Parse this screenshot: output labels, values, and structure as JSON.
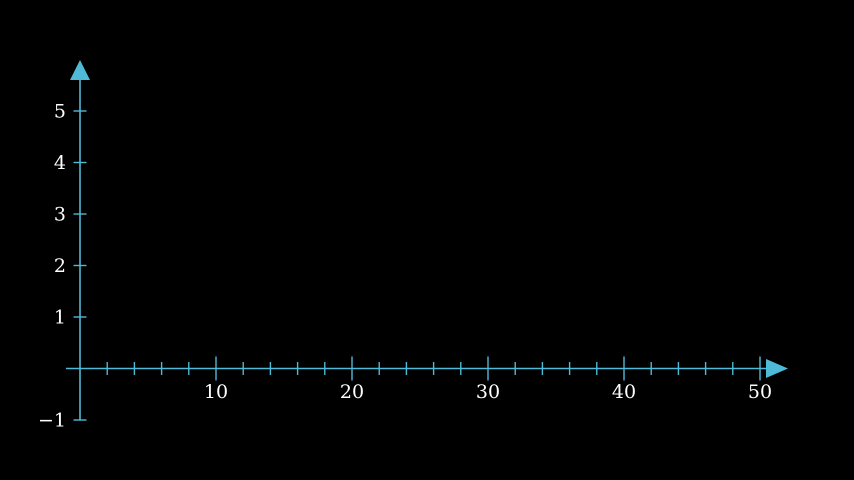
{
  "chart_data": {
    "type": "line",
    "title": "",
    "xlabel": "",
    "ylabel": "",
    "xlim": [
      0,
      50
    ],
    "ylim": [
      -1,
      5
    ],
    "x_ticks_minor_step": 2,
    "x_tick_labels": [
      "10",
      "20",
      "30",
      "40",
      "50"
    ],
    "y_tick_labels": [
      "−1",
      "1",
      "2",
      "3",
      "4",
      "5"
    ],
    "series": [],
    "grid": false,
    "axis_color": "#4fb9d8",
    "label_color": "#ffffff",
    "background": "#000000"
  }
}
